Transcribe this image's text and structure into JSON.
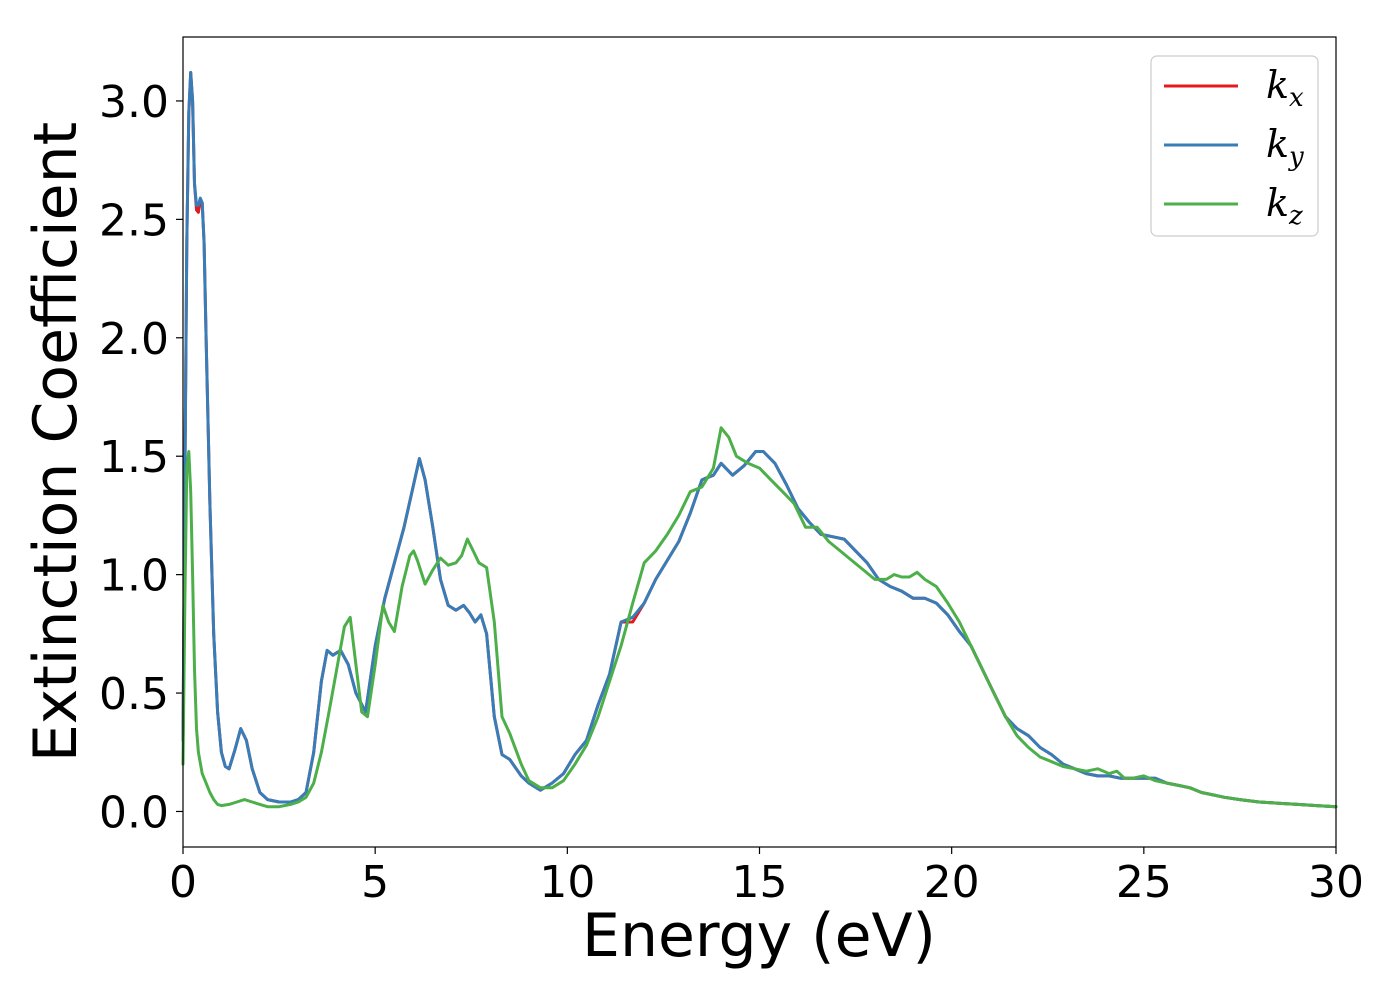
{
  "chart_data": {
    "type": "line",
    "xlabel": "Energy (eV)",
    "ylabel": "Extinction Coefficient",
    "xlim": [
      0,
      30
    ],
    "ylim": [
      -0.15,
      3.27
    ],
    "xticks": [
      0,
      5,
      10,
      15,
      20,
      25,
      30
    ],
    "xtick_labels": [
      "0",
      "5",
      "10",
      "15",
      "20",
      "25",
      "30"
    ],
    "yticks": [
      0.0,
      0.5,
      1.0,
      1.5,
      2.0,
      2.5,
      3.0
    ],
    "ytick_labels": [
      "0.0",
      "0.5",
      "1.0",
      "1.5",
      "2.0",
      "2.5",
      "3.0"
    ],
    "grid": false,
    "legend_position": "top-right",
    "series": [
      {
        "name": "k",
        "subscript": "x",
        "color": "#e41a1c",
        "x": [
          0,
          0.05,
          0.1,
          0.15,
          0.2,
          0.25,
          0.3,
          0.35,
          0.4,
          0.45,
          0.5,
          0.55,
          0.6,
          0.7,
          0.8,
          0.9,
          1.0,
          1.1,
          1.2,
          1.35,
          1.5,
          1.65,
          1.8,
          2.0,
          2.2,
          2.5,
          2.8,
          3.0,
          3.2,
          3.4,
          3.6,
          3.75,
          3.9,
          4.1,
          4.3,
          4.5,
          4.75,
          5.0,
          5.25,
          5.5,
          5.75,
          6.0,
          6.15,
          6.3,
          6.5,
          6.7,
          6.9,
          7.1,
          7.3,
          7.45,
          7.6,
          7.75,
          7.9,
          8.1,
          8.3,
          8.5,
          8.8,
          9.0,
          9.3,
          9.6,
          9.9,
          10.2,
          10.5,
          10.8,
          11.1,
          11.4,
          11.7,
          12.0,
          12.3,
          12.6,
          12.9,
          13.2,
          13.5,
          13.8,
          14.0,
          14.3,
          14.6,
          14.9,
          15.1,
          15.4,
          15.7,
          16.0,
          16.3,
          16.6,
          16.9,
          17.2,
          17.5,
          17.8,
          18.1,
          18.4,
          18.7,
          19.0,
          19.3,
          19.6,
          19.9,
          20.2,
          20.5,
          20.8,
          21.1,
          21.4,
          21.7,
          22.0,
          22.3,
          22.6,
          22.9,
          23.2,
          23.5,
          23.8,
          24.1,
          24.4,
          24.7,
          25.0,
          25.3,
          25.6,
          25.9,
          26.2,
          26.5,
          26.8,
          27.1,
          27.5,
          28.0,
          28.5,
          29.0,
          29.5,
          30.0
        ],
        "y": [
          0.3,
          1.4,
          2.4,
          2.95,
          3.12,
          3.0,
          2.65,
          2.54,
          2.53,
          2.58,
          2.57,
          2.4,
          2.0,
          1.3,
          0.75,
          0.42,
          0.25,
          0.19,
          0.18,
          0.26,
          0.35,
          0.3,
          0.18,
          0.08,
          0.05,
          0.04,
          0.04,
          0.05,
          0.08,
          0.25,
          0.55,
          0.68,
          0.66,
          0.68,
          0.62,
          0.5,
          0.42,
          0.7,
          0.9,
          1.05,
          1.2,
          1.38,
          1.49,
          1.4,
          1.2,
          0.98,
          0.87,
          0.85,
          0.87,
          0.84,
          0.8,
          0.83,
          0.75,
          0.4,
          0.24,
          0.22,
          0.15,
          0.12,
          0.09,
          0.12,
          0.16,
          0.24,
          0.3,
          0.45,
          0.58,
          0.8,
          0.8,
          0.88,
          0.98,
          1.06,
          1.14,
          1.26,
          1.4,
          1.42,
          1.47,
          1.42,
          1.46,
          1.52,
          1.52,
          1.47,
          1.38,
          1.28,
          1.22,
          1.17,
          1.16,
          1.15,
          1.1,
          1.05,
          0.98,
          0.95,
          0.93,
          0.9,
          0.9,
          0.88,
          0.83,
          0.76,
          0.7,
          0.6,
          0.5,
          0.4,
          0.35,
          0.32,
          0.27,
          0.24,
          0.2,
          0.18,
          0.16,
          0.15,
          0.15,
          0.14,
          0.14,
          0.14,
          0.14,
          0.12,
          0.11,
          0.1,
          0.08,
          0.07,
          0.06,
          0.05,
          0.04,
          0.035,
          0.03,
          0.025,
          0.02
        ]
      },
      {
        "name": "k",
        "subscript": "y",
        "color": "#377eb8",
        "x": [
          0,
          0.05,
          0.1,
          0.15,
          0.2,
          0.25,
          0.3,
          0.35,
          0.4,
          0.45,
          0.5,
          0.55,
          0.6,
          0.7,
          0.8,
          0.9,
          1.0,
          1.1,
          1.2,
          1.35,
          1.5,
          1.65,
          1.8,
          2.0,
          2.2,
          2.5,
          2.8,
          3.0,
          3.2,
          3.4,
          3.6,
          3.75,
          3.9,
          4.1,
          4.3,
          4.5,
          4.75,
          5.0,
          5.25,
          5.5,
          5.75,
          6.0,
          6.15,
          6.3,
          6.5,
          6.7,
          6.9,
          7.1,
          7.3,
          7.45,
          7.6,
          7.75,
          7.9,
          8.1,
          8.3,
          8.5,
          8.8,
          9.0,
          9.3,
          9.6,
          9.9,
          10.2,
          10.5,
          10.8,
          11.1,
          11.4,
          11.7,
          12.0,
          12.3,
          12.6,
          12.9,
          13.2,
          13.5,
          13.8,
          14.0,
          14.3,
          14.6,
          14.9,
          15.1,
          15.4,
          15.7,
          16.0,
          16.3,
          16.6,
          16.9,
          17.2,
          17.5,
          17.8,
          18.1,
          18.4,
          18.7,
          19.0,
          19.3,
          19.6,
          19.9,
          20.2,
          20.5,
          20.8,
          21.1,
          21.4,
          21.7,
          22.0,
          22.3,
          22.6,
          22.9,
          23.2,
          23.5,
          23.8,
          24.1,
          24.4,
          24.7,
          25.0,
          25.3,
          25.6,
          25.9,
          26.2,
          26.5,
          26.8,
          27.1,
          27.5,
          28.0,
          28.5,
          29.0,
          29.5,
          30.0
        ],
        "y": [
          0.3,
          1.4,
          2.4,
          2.95,
          3.12,
          3.0,
          2.65,
          2.56,
          2.56,
          2.59,
          2.57,
          2.4,
          2.0,
          1.3,
          0.75,
          0.42,
          0.25,
          0.19,
          0.18,
          0.26,
          0.35,
          0.3,
          0.18,
          0.08,
          0.05,
          0.04,
          0.04,
          0.05,
          0.08,
          0.25,
          0.55,
          0.68,
          0.66,
          0.68,
          0.62,
          0.5,
          0.42,
          0.7,
          0.9,
          1.05,
          1.2,
          1.38,
          1.49,
          1.4,
          1.2,
          0.98,
          0.87,
          0.85,
          0.87,
          0.84,
          0.8,
          0.83,
          0.75,
          0.4,
          0.24,
          0.22,
          0.15,
          0.12,
          0.09,
          0.12,
          0.16,
          0.24,
          0.3,
          0.45,
          0.58,
          0.8,
          0.82,
          0.88,
          0.98,
          1.06,
          1.14,
          1.26,
          1.4,
          1.42,
          1.47,
          1.42,
          1.46,
          1.52,
          1.52,
          1.47,
          1.38,
          1.28,
          1.22,
          1.17,
          1.16,
          1.15,
          1.1,
          1.05,
          0.98,
          0.95,
          0.93,
          0.9,
          0.9,
          0.88,
          0.83,
          0.76,
          0.7,
          0.6,
          0.5,
          0.4,
          0.35,
          0.32,
          0.27,
          0.24,
          0.2,
          0.18,
          0.16,
          0.15,
          0.15,
          0.14,
          0.14,
          0.14,
          0.14,
          0.12,
          0.11,
          0.1,
          0.08,
          0.07,
          0.06,
          0.05,
          0.04,
          0.035,
          0.03,
          0.025,
          0.02
        ]
      },
      {
        "name": "k",
        "subscript": "z",
        "color": "#4daf4a",
        "x": [
          0,
          0.05,
          0.1,
          0.15,
          0.2,
          0.25,
          0.3,
          0.35,
          0.4,
          0.5,
          0.6,
          0.7,
          0.8,
          0.9,
          1.0,
          1.2,
          1.4,
          1.6,
          1.8,
          2.0,
          2.2,
          2.5,
          2.8,
          3.0,
          3.2,
          3.4,
          3.6,
          3.8,
          4.0,
          4.2,
          4.35,
          4.5,
          4.65,
          4.8,
          5.0,
          5.2,
          5.35,
          5.5,
          5.7,
          5.9,
          6.0,
          6.1,
          6.3,
          6.5,
          6.7,
          6.9,
          7.1,
          7.25,
          7.4,
          7.55,
          7.7,
          7.9,
          8.1,
          8.3,
          8.5,
          8.8,
          9.0,
          9.3,
          9.6,
          9.9,
          10.2,
          10.5,
          10.8,
          11.1,
          11.4,
          11.7,
          12.0,
          12.3,
          12.6,
          12.9,
          13.2,
          13.5,
          13.8,
          14.0,
          14.2,
          14.4,
          14.7,
          15.0,
          15.3,
          15.6,
          15.9,
          16.2,
          16.5,
          16.8,
          17.1,
          17.4,
          17.7,
          18.0,
          18.3,
          18.5,
          18.7,
          18.9,
          19.1,
          19.3,
          19.6,
          19.9,
          20.2,
          20.5,
          20.8,
          21.1,
          21.4,
          21.7,
          22.0,
          22.3,
          22.6,
          22.9,
          23.2,
          23.5,
          23.8,
          24.1,
          24.3,
          24.5,
          24.7,
          25.0,
          25.3,
          25.6,
          25.9,
          26.2,
          26.5,
          26.8,
          27.1,
          27.5,
          28.0,
          28.5,
          29.0,
          29.5,
          30.0
        ],
        "y": [
          0.2,
          0.9,
          1.45,
          1.52,
          1.35,
          1.0,
          0.6,
          0.35,
          0.25,
          0.16,
          0.12,
          0.08,
          0.05,
          0.03,
          0.025,
          0.03,
          0.04,
          0.05,
          0.04,
          0.03,
          0.02,
          0.02,
          0.03,
          0.04,
          0.06,
          0.12,
          0.25,
          0.42,
          0.6,
          0.78,
          0.82,
          0.62,
          0.42,
          0.4,
          0.62,
          0.87,
          0.8,
          0.76,
          0.95,
          1.08,
          1.1,
          1.06,
          0.96,
          1.02,
          1.07,
          1.04,
          1.05,
          1.08,
          1.15,
          1.1,
          1.05,
          1.03,
          0.8,
          0.4,
          0.33,
          0.2,
          0.13,
          0.1,
          0.1,
          0.13,
          0.2,
          0.28,
          0.4,
          0.55,
          0.7,
          0.88,
          1.05,
          1.1,
          1.17,
          1.25,
          1.35,
          1.37,
          1.45,
          1.62,
          1.58,
          1.5,
          1.47,
          1.45,
          1.4,
          1.35,
          1.3,
          1.2,
          1.2,
          1.14,
          1.1,
          1.06,
          1.02,
          0.98,
          0.98,
          1.0,
          0.99,
          0.99,
          1.01,
          0.98,
          0.95,
          0.88,
          0.8,
          0.7,
          0.6,
          0.5,
          0.4,
          0.32,
          0.27,
          0.23,
          0.21,
          0.19,
          0.18,
          0.17,
          0.18,
          0.16,
          0.17,
          0.14,
          0.14,
          0.15,
          0.13,
          0.12,
          0.11,
          0.1,
          0.08,
          0.07,
          0.06,
          0.05,
          0.04,
          0.035,
          0.03,
          0.025,
          0.02
        ]
      }
    ]
  }
}
